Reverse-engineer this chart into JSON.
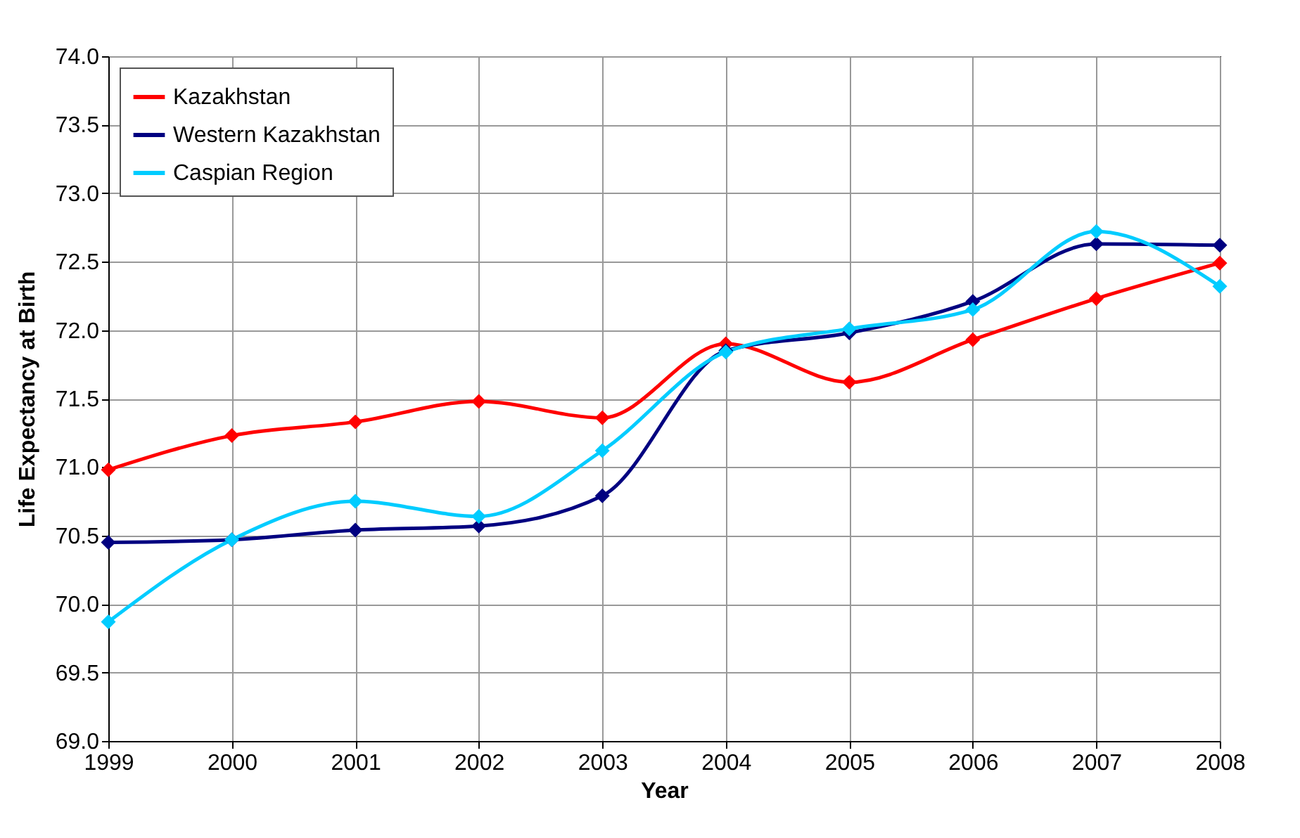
{
  "chart_data": {
    "type": "line",
    "xlabel": "Year",
    "ylabel": "Life Expectancy at Birth",
    "x": [
      1999,
      2000,
      2001,
      2002,
      2003,
      2004,
      2005,
      2006,
      2007,
      2008
    ],
    "series": [
      {
        "name": "Kazakhstan",
        "color": "#ff0000",
        "values": [
          70.98,
          71.23,
          71.33,
          71.48,
          71.36,
          71.9,
          71.62,
          71.93,
          72.23,
          72.49
        ]
      },
      {
        "name": "Western Kazakhstan",
        "color": "#000080",
        "values": [
          70.45,
          70.47,
          70.54,
          70.57,
          70.79,
          71.85,
          71.98,
          72.21,
          72.63,
          72.62
        ]
      },
      {
        "name": "Caspian Region",
        "color": "#00ccff",
        "values": [
          69.87,
          70.47,
          70.75,
          70.64,
          71.12,
          71.84,
          72.01,
          72.15,
          72.72,
          72.32
        ]
      }
    ],
    "xlim": [
      1999,
      2008
    ],
    "xticks": [
      1999,
      2000,
      2001,
      2002,
      2003,
      2004,
      2005,
      2006,
      2007,
      2008
    ],
    "ylim": [
      69.0,
      74.0
    ],
    "yticks": [
      {
        "value": 69,
        "label": "69.0"
      },
      69.5,
      {
        "value": 70,
        "label": "70.0"
      },
      70.5,
      {
        "value": 71,
        "label": "71.0"
      },
      71.5,
      {
        "value": 72,
        "label": "72.0"
      },
      72.5,
      {
        "value": 73,
        "label": "73.0"
      },
      73.5,
      {
        "value": 74,
        "label": "74.0"
      }
    ],
    "grid": true,
    "legend": "top left",
    "marker": "diamond",
    "line_style": "solid"
  }
}
